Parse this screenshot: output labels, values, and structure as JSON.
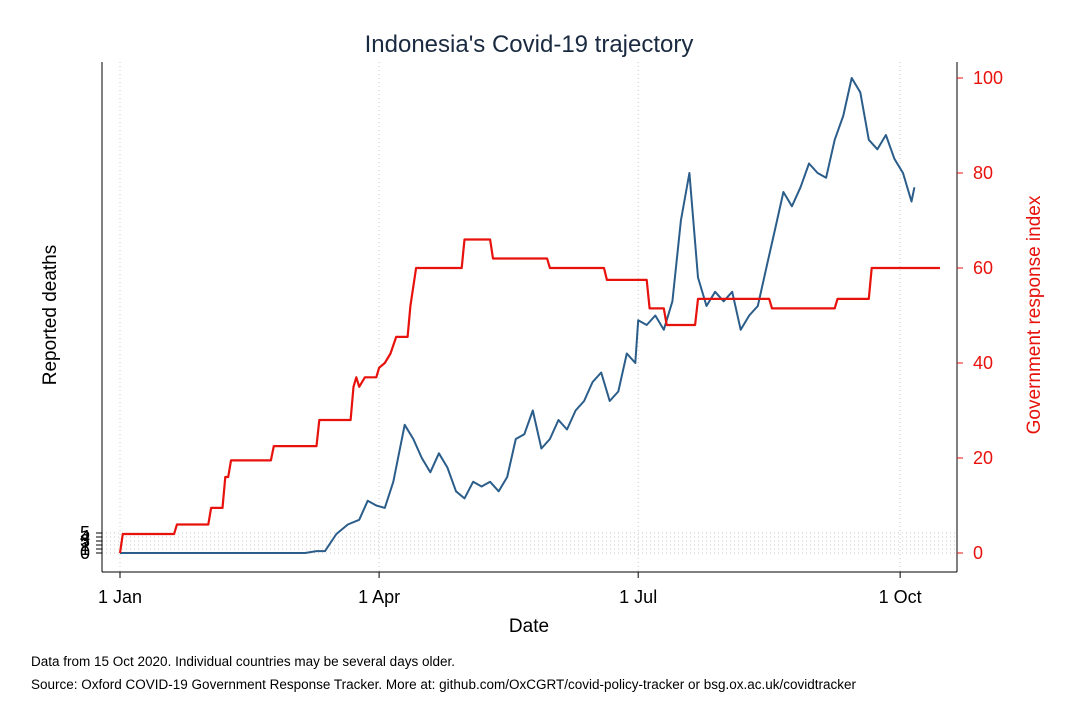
{
  "chart_data": {
    "type": "line",
    "title": "Indonesia's Covid-19 trajectory",
    "xlabel": "Date",
    "ylabel_left": "Reported deaths",
    "ylabel_right": "Government response index",
    "x_range": [
      "2020-01-01",
      "2020-10-15"
    ],
    "x_ticks": [
      "1 Jan",
      "1 Apr",
      "1 Jul",
      "1 Oct"
    ],
    "x_tick_dates": [
      "2020-01-01",
      "2020-04-01",
      "2020-07-01",
      "2020-10-01"
    ],
    "y_left_ticks": [
      "0",
      "1",
      "2",
      "3",
      "4",
      "5"
    ],
    "y_left_range": [
      0,
      5
    ],
    "y_right_ticks": [
      "0",
      "20",
      "40",
      "60",
      "80",
      "100"
    ],
    "y_right_range": [
      0,
      100
    ],
    "grid": "dotted vertical lines at date ticks; dotted horizontal lines at left axis ticks",
    "colors": {
      "deaths": "#2b5d8a",
      "response": "#e8120c",
      "title": "#1a2a40"
    },
    "series": [
      {
        "id": "deaths",
        "axis": "right",
        "color": "#2b5d8a",
        "points": [
          [
            "2020-01-01",
            0
          ],
          [
            "2020-02-01",
            0
          ],
          [
            "2020-03-01",
            0
          ],
          [
            "2020-03-06",
            0
          ],
          [
            "2020-03-10",
            0.4
          ],
          [
            "2020-03-13",
            0.4
          ],
          [
            "2020-03-17",
            4
          ],
          [
            "2020-03-21",
            6
          ],
          [
            "2020-03-25",
            7
          ],
          [
            "2020-03-28",
            11
          ],
          [
            "2020-03-31",
            10
          ],
          [
            "2020-04-03",
            9.5
          ],
          [
            "2020-04-06",
            15
          ],
          [
            "2020-04-10",
            27
          ],
          [
            "2020-04-13",
            24
          ],
          [
            "2020-04-16",
            20
          ],
          [
            "2020-04-19",
            17
          ],
          [
            "2020-04-22",
            21
          ],
          [
            "2020-04-25",
            18
          ],
          [
            "2020-04-28",
            13
          ],
          [
            "2020-05-01",
            11.5
          ],
          [
            "2020-05-04",
            15
          ],
          [
            "2020-05-07",
            14
          ],
          [
            "2020-05-10",
            15
          ],
          [
            "2020-05-13",
            13
          ],
          [
            "2020-05-16",
            16
          ],
          [
            "2020-05-19",
            24
          ],
          [
            "2020-05-22",
            25
          ],
          [
            "2020-05-25",
            30
          ],
          [
            "2020-05-28",
            22
          ],
          [
            "2020-05-31",
            24
          ],
          [
            "2020-06-03",
            28
          ],
          [
            "2020-06-06",
            26
          ],
          [
            "2020-06-09",
            30
          ],
          [
            "2020-06-12",
            32
          ],
          [
            "2020-06-15",
            36
          ],
          [
            "2020-06-18",
            38
          ],
          [
            "2020-06-21",
            32
          ],
          [
            "2020-06-24",
            34
          ],
          [
            "2020-06-27",
            42
          ],
          [
            "2020-06-30",
            40
          ],
          [
            "2020-07-01",
            49
          ],
          [
            "2020-07-04",
            48
          ],
          [
            "2020-07-07",
            50
          ],
          [
            "2020-07-10",
            47
          ],
          [
            "2020-07-13",
            53
          ],
          [
            "2020-07-16",
            70
          ],
          [
            "2020-07-19",
            80
          ],
          [
            "2020-07-22",
            58
          ],
          [
            "2020-07-25",
            52
          ],
          [
            "2020-07-28",
            55
          ],
          [
            "2020-07-31",
            53
          ],
          [
            "2020-08-03",
            55
          ],
          [
            "2020-08-06",
            47
          ],
          [
            "2020-08-09",
            50
          ],
          [
            "2020-08-12",
            52
          ],
          [
            "2020-08-15",
            60
          ],
          [
            "2020-08-18",
            68
          ],
          [
            "2020-08-21",
            76
          ],
          [
            "2020-08-24",
            73
          ],
          [
            "2020-08-27",
            77
          ],
          [
            "2020-08-30",
            82
          ],
          [
            "2020-09-02",
            80
          ],
          [
            "2020-09-05",
            79
          ],
          [
            "2020-09-08",
            87
          ],
          [
            "2020-09-11",
            92
          ],
          [
            "2020-09-14",
            100
          ],
          [
            "2020-09-17",
            97
          ],
          [
            "2020-09-20",
            87
          ],
          [
            "2020-09-23",
            85
          ],
          [
            "2020-09-26",
            88
          ],
          [
            "2020-09-29",
            83
          ],
          [
            "2020-10-02",
            80
          ],
          [
            "2020-10-05",
            74
          ],
          [
            "2020-10-06",
            77
          ]
        ]
      },
      {
        "id": "government_response_index",
        "axis": "right",
        "color": "#e8120c",
        "points": [
          [
            "2020-01-01",
            0
          ],
          [
            "2020-01-02",
            4
          ],
          [
            "2020-01-20",
            4
          ],
          [
            "2020-01-21",
            6
          ],
          [
            "2020-02-01",
            6
          ],
          [
            "2020-02-02",
            9.5
          ],
          [
            "2020-02-06",
            9.5
          ],
          [
            "2020-02-07",
            16
          ],
          [
            "2020-02-08",
            16
          ],
          [
            "2020-02-09",
            19.5
          ],
          [
            "2020-02-23",
            19.5
          ],
          [
            "2020-02-24",
            22.5
          ],
          [
            "2020-03-10",
            22.5
          ],
          [
            "2020-03-11",
            28
          ],
          [
            "2020-03-22",
            28
          ],
          [
            "2020-03-23",
            35
          ],
          [
            "2020-03-24",
            37
          ],
          [
            "2020-03-25",
            35
          ],
          [
            "2020-03-27",
            37
          ],
          [
            "2020-03-31",
            37
          ],
          [
            "2020-04-01",
            39
          ],
          [
            "2020-04-03",
            40
          ],
          [
            "2020-04-05",
            42
          ],
          [
            "2020-04-07",
            45.5
          ],
          [
            "2020-04-11",
            45.5
          ],
          [
            "2020-04-12",
            52
          ],
          [
            "2020-04-14",
            60
          ],
          [
            "2020-04-30",
            60
          ],
          [
            "2020-05-01",
            66
          ],
          [
            "2020-05-10",
            66
          ],
          [
            "2020-05-11",
            62
          ],
          [
            "2020-05-30",
            62
          ],
          [
            "2020-05-31",
            60
          ],
          [
            "2020-06-19",
            60
          ],
          [
            "2020-06-20",
            57.5
          ],
          [
            "2020-07-04",
            57.5
          ],
          [
            "2020-07-05",
            51.5
          ],
          [
            "2020-07-10",
            51.5
          ],
          [
            "2020-07-11",
            48
          ],
          [
            "2020-07-21",
            48
          ],
          [
            "2020-07-22",
            53.5
          ],
          [
            "2020-08-16",
            53.5
          ],
          [
            "2020-08-17",
            51.5
          ],
          [
            "2020-09-08",
            51.5
          ],
          [
            "2020-09-09",
            53.5
          ],
          [
            "2020-09-20",
            53.5
          ],
          [
            "2020-09-21",
            60
          ],
          [
            "2020-10-15",
            60
          ]
        ]
      }
    ]
  },
  "footer": {
    "line1": "Data from 15 Oct 2020. Individual countries may be several days older.",
    "line2": "Source: Oxford COVID-19 Government Response Tracker. More at: github.com/OxCGRT/covid-policy-tracker or bsg.ox.ac.uk/covidtracker"
  }
}
